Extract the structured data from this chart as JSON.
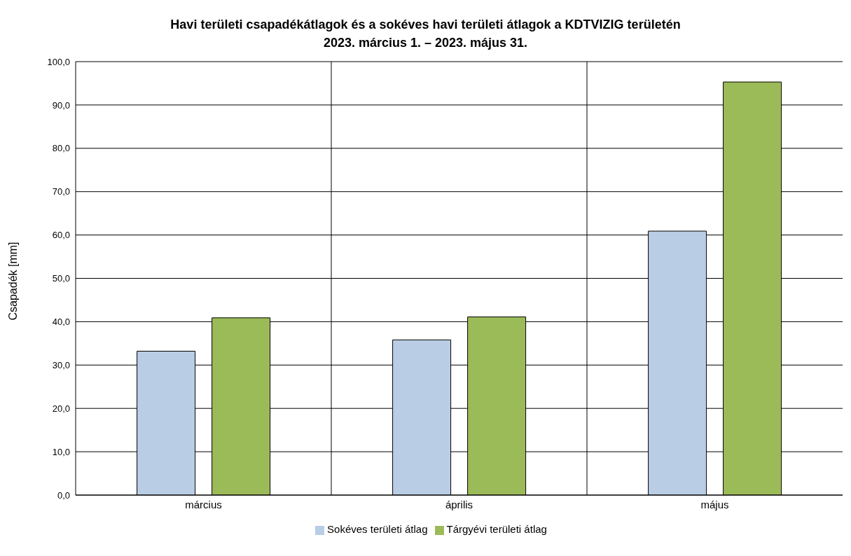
{
  "chart_data": {
    "type": "bar",
    "title": "Havi területi csapadékátlagok és a sokéves havi területi átlagok a KDTVIZIG területén",
    "subtitle": "2023. március 1. – 2023. május 31.",
    "ylabel": "Csapadék [mm]",
    "categories": [
      "március",
      "április",
      "május"
    ],
    "series": [
      {
        "name": "Sokéves területi átlag",
        "color": "#b9cde5",
        "values": [
          33.2,
          35.8,
          60.9
        ]
      },
      {
        "name": "Tárgyévi területi átlag",
        "color": "#9bbb59",
        "values": [
          40.9,
          41.1,
          95.3
        ]
      }
    ],
    "ylim": [
      0,
      100
    ],
    "yticks": [
      {
        "value": 0,
        "label": "0,0"
      },
      {
        "value": 10,
        "label": "10,0"
      },
      {
        "value": 20,
        "label": "20,0"
      },
      {
        "value": 30,
        "label": "30,0"
      },
      {
        "value": 40,
        "label": "40,0"
      },
      {
        "value": 50,
        "label": "50,0"
      },
      {
        "value": 60,
        "label": "60,0"
      },
      {
        "value": 70,
        "label": "70,0"
      },
      {
        "value": 80,
        "label": "80,0"
      },
      {
        "value": 90,
        "label": "90,0"
      },
      {
        "value": 100,
        "label": "100,0"
      }
    ],
    "grid": true,
    "legend": "bottom"
  }
}
